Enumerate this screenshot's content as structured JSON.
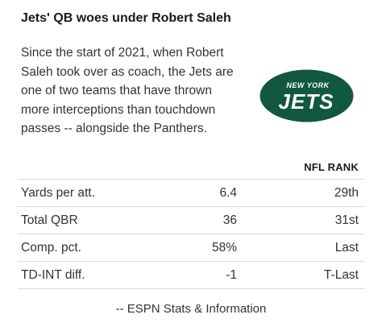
{
  "header": {
    "title": "Jets' QB woes under Robert Saleh"
  },
  "intro": {
    "text": "Since the start of 2021, when Robert Saleh took over as coach, the Jets are one of two teams that have thrown more interceptions than touchdown passes -- alongside the Panthers."
  },
  "logo": {
    "icon": "new-york-jets-logo",
    "top_text": "NEW YORK",
    "main_text": "JETS",
    "colors": {
      "green": "#125740",
      "white": "#ffffff"
    }
  },
  "table": {
    "rank_header": "NFL RANK",
    "rows": [
      {
        "label": "Yards per att.",
        "value": "6.4",
        "rank": "29th"
      },
      {
        "label": "Total QBR",
        "value": "36",
        "rank": "31st"
      },
      {
        "label": "Comp. pct.",
        "value": "58%",
        "rank": "Last"
      },
      {
        "label": "TD-INT diff.",
        "value": "-1",
        "rank": "T-Last"
      }
    ]
  },
  "footer": {
    "source": "-- ESPN Stats & Information"
  }
}
